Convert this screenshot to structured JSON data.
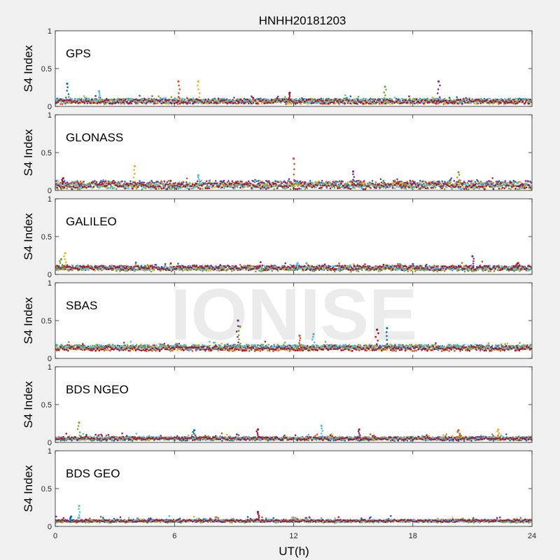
{
  "figure": {
    "title": "HNHH20181203",
    "xlabel": "UT(h)",
    "watermark": "IONISE",
    "background": "#f0f0f0",
    "axes_background": "#ffffff"
  },
  "chart_data": {
    "type": "scatter",
    "title": "HNHH20181203",
    "xlabel": "UT(h)",
    "ylabel": "S4 Index",
    "xlim": [
      0,
      24
    ],
    "xticks": [
      0,
      6,
      12,
      18,
      24
    ],
    "ylim": [
      0,
      1
    ],
    "yticks": [
      0,
      0.5,
      1
    ],
    "ytick_labels": [
      "0",
      "0.5",
      "1"
    ],
    "grid": false,
    "colors": [
      "#0072BD",
      "#D95319",
      "#EDB120",
      "#7E2F8E",
      "#77AC30",
      "#4DBEEE",
      "#A2142F"
    ],
    "panels": [
      {
        "name": "GPS",
        "series_count": 7,
        "baseline": 0.07,
        "noise": 0.03,
        "spikes": [
          {
            "x": 0.6,
            "y": 0.3
          },
          {
            "x": 6.2,
            "y": 0.33
          },
          {
            "x": 7.2,
            "y": 0.33
          },
          {
            "x": 19.3,
            "y": 0.33
          },
          {
            "x": 16.6,
            "y": 0.26
          },
          {
            "x": 2.2,
            "y": 0.2
          },
          {
            "x": 11.8,
            "y": 0.18
          }
        ]
      },
      {
        "name": "GLONASS",
        "series_count": 7,
        "baseline": 0.07,
        "noise": 0.04,
        "spikes": [
          {
            "x": 12.0,
            "y": 0.42
          },
          {
            "x": 4.0,
            "y": 0.32
          },
          {
            "x": 15.0,
            "y": 0.25
          },
          {
            "x": 20.3,
            "y": 0.24
          },
          {
            "x": 7.2,
            "y": 0.2
          },
          {
            "x": 0.4,
            "y": 0.16
          }
        ]
      },
      {
        "name": "GALILEO",
        "series_count": 7,
        "baseline": 0.08,
        "noise": 0.03,
        "spikes": [
          {
            "x": 0.5,
            "y": 0.28
          },
          {
            "x": 21.0,
            "y": 0.24
          },
          {
            "x": 0.3,
            "y": 0.2
          },
          {
            "x": 12.2,
            "y": 0.15
          },
          {
            "x": 23.3,
            "y": 0.15
          }
        ]
      },
      {
        "name": "SBAS",
        "series_count": 7,
        "baseline": 0.14,
        "noise": 0.03,
        "spikes": [
          {
            "x": 9.2,
            "y": 0.5
          },
          {
            "x": 9.3,
            "y": 0.42
          },
          {
            "x": 13.0,
            "y": 0.32
          },
          {
            "x": 16.2,
            "y": 0.38
          },
          {
            "x": 16.7,
            "y": 0.4
          },
          {
            "x": 12.3,
            "y": 0.3
          }
        ]
      },
      {
        "name": "BDS NGEO",
        "series_count": 7,
        "baseline": 0.05,
        "noise": 0.02,
        "spikes": [
          {
            "x": 1.2,
            "y": 0.26
          },
          {
            "x": 13.4,
            "y": 0.22
          },
          {
            "x": 10.2,
            "y": 0.17
          },
          {
            "x": 7.0,
            "y": 0.16
          },
          {
            "x": 20.3,
            "y": 0.16
          },
          {
            "x": 22.3,
            "y": 0.17
          },
          {
            "x": 15.3,
            "y": 0.17
          }
        ]
      },
      {
        "name": "BDS GEO",
        "series_count": 7,
        "baseline": 0.07,
        "noise": 0.015,
        "spikes": [
          {
            "x": 1.2,
            "y": 0.27
          },
          {
            "x": 10.2,
            "y": 0.19
          },
          {
            "x": 0.8,
            "y": 0.13
          }
        ]
      }
    ]
  }
}
